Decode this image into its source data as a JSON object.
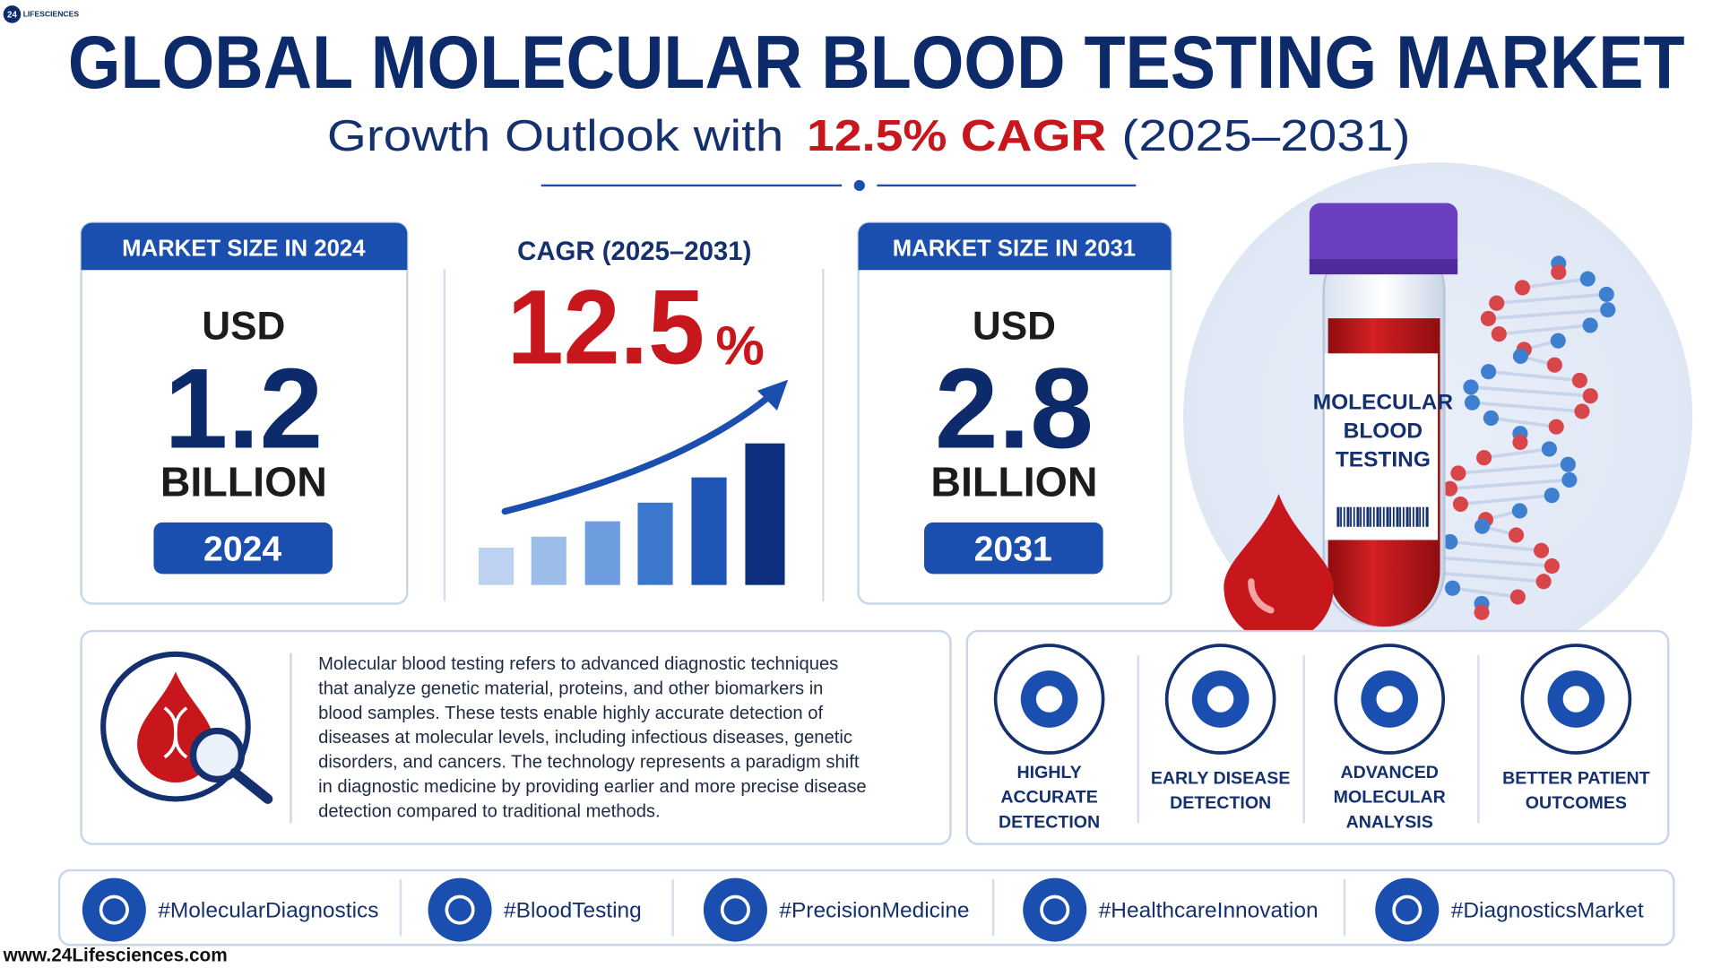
{
  "logo": {
    "mark": "24",
    "name": "LIFESCIENCES"
  },
  "header": {
    "title": "GLOBAL MOLECULAR BLOOD TESTING MARKET",
    "subtitle_lead": "Growth Outlook with",
    "subtitle_highlight": "12.5% CAGR",
    "subtitle_tail": "(2025–2031)"
  },
  "market_2024": {
    "label": "MARKET SIZE IN 2024",
    "currency": "USD",
    "value": "1.2",
    "unit": "BILLION",
    "year": "2024"
  },
  "cagr": {
    "label": "CAGR (2025–2031)",
    "value": "12.5",
    "unit": "%"
  },
  "market_2031": {
    "label": "MARKET SIZE IN 2031",
    "currency": "USD",
    "value": "2.8",
    "unit": "BILLION",
    "year": "2031"
  },
  "tube_label": [
    "MOLECULAR",
    "BLOOD",
    "TESTING"
  ],
  "description": [
    "Molecular blood testing refers to advanced diagnostic techniques",
    "that analyze genetic material, proteins, and other biomarkers in",
    "blood samples. These tests enable highly accurate detection of",
    "diseases at molecular levels, including infectious diseases, genetic",
    "disorders, and cancers. The technology represents a paradigm shift",
    "in diagnostic medicine by providing earlier and more precise disease",
    "detection compared to traditional methods."
  ],
  "benefits": [
    {
      "lines": [
        "HIGHLY",
        "ACCURATE",
        "DETECTION"
      ]
    },
    {
      "lines": [
        "EARLY DISEASE",
        "DETECTION"
      ]
    },
    {
      "lines": [
        "ADVANCED",
        "MOLECULAR",
        "ANALYSIS"
      ]
    },
    {
      "lines": [
        "BETTER PATIENT",
        "OUTCOMES"
      ]
    }
  ],
  "hashtags": [
    "#MolecularDiagnostics",
    "#BloodTesting",
    "#PrecisionMedicine",
    "#HealthcareInnovation",
    "#DiagnosticsMarket"
  ],
  "footer_url": "www.24Lifesciences.com"
}
